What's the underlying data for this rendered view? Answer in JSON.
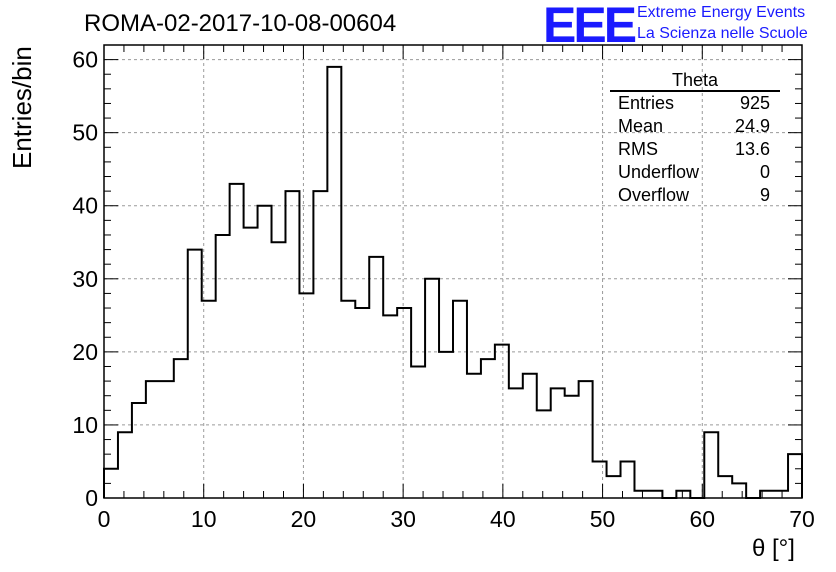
{
  "title": "ROMA-02-2017-10-08-00604",
  "logo": {
    "text": "EEE",
    "line1": "Extreme Energy Events",
    "line2": "La Scienza nelle Scuole",
    "color": "#1a1aff"
  },
  "stats": {
    "title": "Theta",
    "rows": [
      {
        "label": "Entries",
        "value": "925"
      },
      {
        "label": "Mean",
        "value": "24.9"
      },
      {
        "label": "RMS",
        "value": "13.6"
      },
      {
        "label": "Underflow",
        "value": "0"
      },
      {
        "label": "Overflow",
        "value": "9"
      }
    ]
  },
  "chart_data": {
    "type": "histogram",
    "title": "ROMA-02-2017-10-08-00604",
    "xlabel": "θ [°]",
    "ylabel": "Entries/bin",
    "xlim": [
      0,
      70
    ],
    "ylim": [
      0,
      62
    ],
    "xticks": [
      0,
      10,
      20,
      30,
      40,
      50,
      60,
      70
    ],
    "yticks": [
      0,
      10,
      20,
      30,
      40,
      50,
      60
    ],
    "grid": true,
    "bin_width": 1.4,
    "bin_edges_start": 0,
    "values": [
      4,
      9,
      13,
      16,
      16,
      19,
      34,
      27,
      36,
      43,
      37,
      40,
      35,
      42,
      28,
      42,
      59,
      27,
      26,
      33,
      25,
      26,
      18,
      30,
      20,
      27,
      17,
      19,
      21,
      15,
      17,
      12,
      15,
      14,
      16,
      5,
      3,
      5,
      1,
      1,
      0,
      1,
      0,
      9,
      3,
      2,
      0,
      1,
      1,
      6
    ]
  }
}
